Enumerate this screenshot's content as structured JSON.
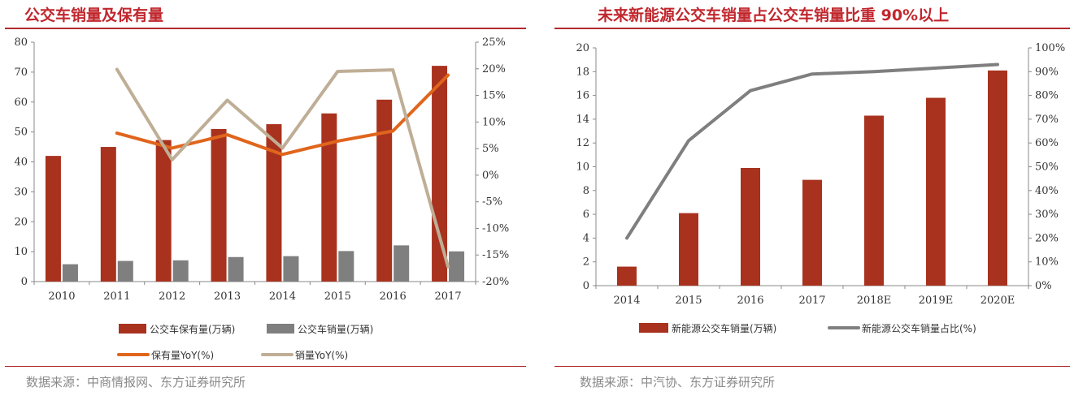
{
  "left": {
    "title": "公交车销量及保有量",
    "source": "数据来源：中商情报网、东方证券研究所"
  },
  "right": {
    "title": "未来新能源公交车销量占公交车销量比重 90%以上",
    "source": "数据来源：中汽协、东方证券研究所"
  },
  "chart_data": [
    {
      "type": "bar",
      "title": "公交车销量及保有量",
      "categories": [
        "2010",
        "2011",
        "2012",
        "2013",
        "2014",
        "2015",
        "2016",
        "2017"
      ],
      "series": [
        {
          "name": "公交车保有量(万辆)",
          "type": "bar",
          "axis": "left",
          "values": [
            42,
            45,
            47.3,
            51,
            52.6,
            56.2,
            60.8,
            72.1
          ]
        },
        {
          "name": "公交车销量(万辆)",
          "type": "bar",
          "axis": "left",
          "values": [
            5.8,
            6.9,
            7.1,
            8.2,
            8.5,
            10.2,
            12.1,
            10.1
          ]
        },
        {
          "name": "保有量YoY(%)",
          "type": "line",
          "axis": "right",
          "values": [
            null,
            7.9,
            5.1,
            7.6,
            3.9,
            6.4,
            8.3,
            18.8
          ]
        },
        {
          "name": "销量YoY(%)",
          "type": "line",
          "axis": "right",
          "values": [
            null,
            19.9,
            2.9,
            14.1,
            5.1,
            19.5,
            19.8,
            -17.2
          ]
        }
      ],
      "y_left": {
        "min": 0,
        "max": 80,
        "ticks": [
          "0",
          "10",
          "20",
          "30",
          "40",
          "50",
          "60",
          "70",
          "80"
        ]
      },
      "y_right": {
        "min": -20,
        "max": 25,
        "ticks": [
          "-20%",
          "-15%",
          "-10%",
          "-5%",
          "0%",
          "5%",
          "10%",
          "15%",
          "20%",
          "25%"
        ]
      },
      "colors": {
        "bar1": "#a8321e",
        "bar2": "#7f7f7f",
        "line1": "#e0651c",
        "line2": "#bfae96"
      },
      "legend_position": "bottom"
    },
    {
      "type": "bar",
      "title": "未来新能源公交车销量占公交车销量比重 90%以上",
      "categories": [
        "2014",
        "2015",
        "2016",
        "2017",
        "2018E",
        "2019E",
        "2020E"
      ],
      "series": [
        {
          "name": "新能源公交车销量(万辆)",
          "type": "bar",
          "axis": "left",
          "values": [
            1.6,
            6.1,
            9.9,
            8.9,
            14.3,
            15.8,
            18.1
          ]
        },
        {
          "name": "新能源公交车销量占比(%)",
          "type": "line",
          "axis": "right",
          "values": [
            20,
            61,
            82,
            89,
            90,
            91.5,
            93
          ]
        }
      ],
      "y_left": {
        "min": 0,
        "max": 20,
        "ticks": [
          "0",
          "2",
          "4",
          "6",
          "8",
          "10",
          "12",
          "14",
          "16",
          "18",
          "20"
        ]
      },
      "y_right": {
        "min": 0,
        "max": 100,
        "ticks": [
          "0%",
          "10%",
          "20%",
          "30%",
          "40%",
          "50%",
          "60%",
          "70%",
          "80%",
          "90%",
          "100%"
        ]
      },
      "colors": {
        "bar1": "#a8321e",
        "line1": "#7f7f7f"
      },
      "legend_position": "bottom"
    }
  ]
}
